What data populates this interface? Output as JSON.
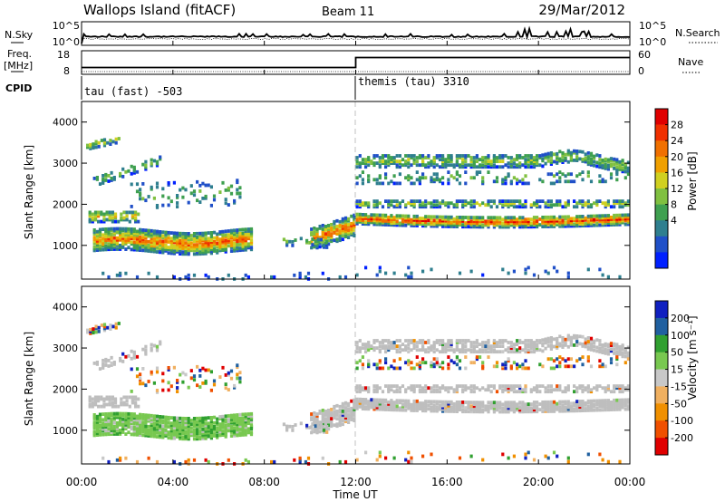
{
  "header": {
    "station": "Wallops Island (fitACF)",
    "beam": "Beam 11",
    "date": "29/Mar/2012"
  },
  "side_labels": {
    "nsky": "N.Sky",
    "freq": "Freq.",
    "freq_unit": "[MHz]",
    "cpid": "CPID",
    "nsearch": "N.Search",
    "nave": "Nave"
  },
  "cpid_segments": [
    {
      "label": "tau (fast) -503",
      "start": "00:00"
    },
    {
      "label": "themis (tau) 3310",
      "start": "12:00"
    }
  ],
  "colors": {
    "power": [
      "#0020ff",
      "#2050c8",
      "#2f7f8f",
      "#3fa050",
      "#80c040",
      "#d0d020",
      "#f0a000",
      "#f07000",
      "#f03000",
      "#e00000"
    ],
    "velocity": [
      "#e00000",
      "#f05000",
      "#f09000",
      "#f0b060",
      "#c8c8c8",
      "#78c850",
      "#30a030",
      "#2060a0",
      "#1020c0"
    ],
    "ground": "#bebebe"
  },
  "chart_data": [
    {
      "type": "line",
      "name": "noise-panel",
      "x_range_hours": [
        0,
        24
      ],
      "y_ticks_left": [
        "10^5",
        "10^0"
      ],
      "y_ticks_right": [
        "10^5",
        "10^0"
      ],
      "series": [
        {
          "name": "N.Sky",
          "style": "solid"
        },
        {
          "name": "N.Search",
          "style": "dotted"
        }
      ]
    },
    {
      "type": "line",
      "name": "frequency-panel",
      "x_range_hours": [
        0,
        24
      ],
      "y_ticks_left": [
        "18",
        "8"
      ],
      "y_ticks_right": [
        "60",
        "0"
      ],
      "series": [
        {
          "name": "Freq.",
          "style": "solid",
          "x": [
            0,
            12,
            12,
            24
          ],
          "y": [
            10.5,
            10.5,
            15.5,
            15.5
          ]
        },
        {
          "name": "Nave",
          "style": "dotted"
        }
      ]
    },
    {
      "type": "heatmap",
      "name": "power-panel",
      "ylabel": "Slant Range [km]",
      "y_ticks": [
        1000,
        2000,
        3000,
        4000
      ],
      "ylim": [
        180,
        4500
      ],
      "xlim": [
        0,
        24
      ],
      "colorbar_label": "Power [dB]",
      "colorbar_ticks": [
        4,
        8,
        12,
        16,
        20,
        24,
        28
      ]
    },
    {
      "type": "heatmap",
      "name": "velocity-panel",
      "ylabel": "Slant Range [km]",
      "y_ticks": [
        1000,
        2000,
        3000,
        4000
      ],
      "ylim": [
        180,
        4500
      ],
      "xlim": [
        0,
        24
      ],
      "colorbar_label": "Velocity [m s⁻¹]",
      "colorbar_ticks": [
        200,
        100,
        50,
        15,
        -15,
        -50,
        -100,
        -200
      ]
    }
  ],
  "x_axis": {
    "label": "Time UT",
    "ticks": [
      "00:00",
      "04:00",
      "08:00",
      "12:00",
      "16:00",
      "20:00",
      "00:00"
    ]
  }
}
